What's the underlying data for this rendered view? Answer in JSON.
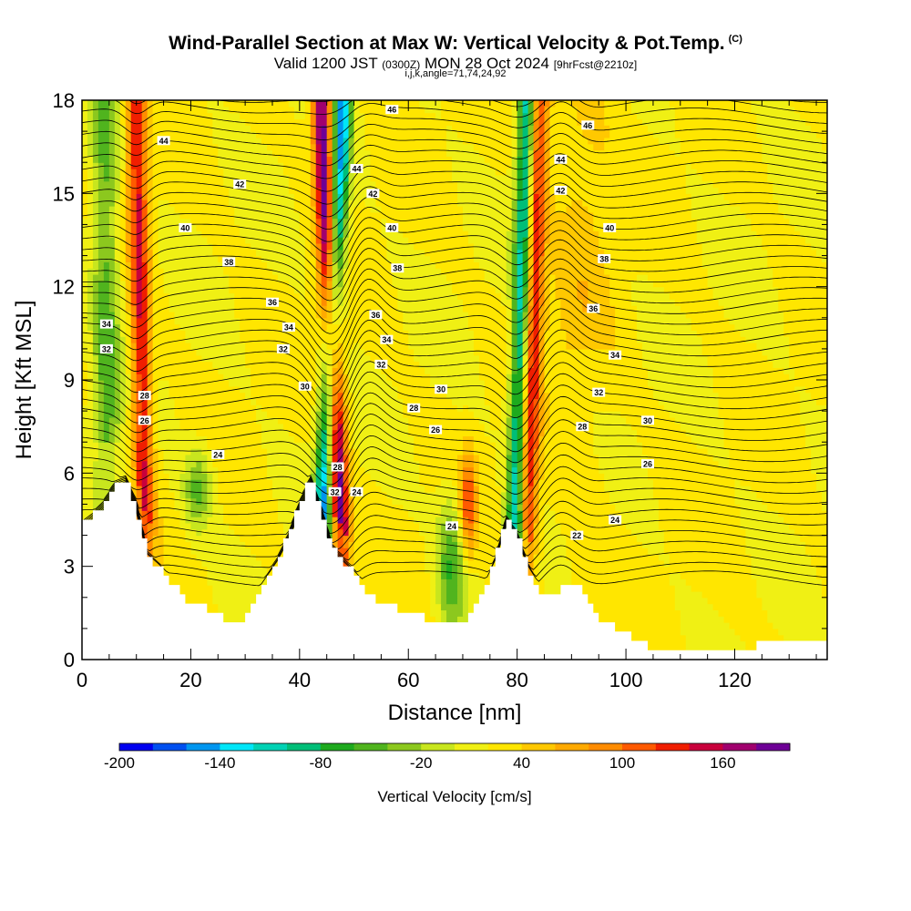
{
  "title": {
    "main": "Wind-Parallel Section at Max W: Vertical Velocity & Pot.Temp.",
    "copyright": "(C)",
    "valid_prefix": "Valid 1200 JST",
    "valid_utc": "(0300Z)",
    "valid_date": "MON 28 Oct 2024",
    "forecast": "[9hrFcst@2210z]",
    "indices": "i,j,k,angle=71,74,24,92"
  },
  "chart_data": {
    "type": "heatmap",
    "xlabel": "Distance [nm]",
    "ylabel": "Height [Kft MSL]",
    "xlim": [
      0,
      137
    ],
    "ylim": [
      0,
      18
    ],
    "x_ticks": [
      0,
      20,
      40,
      60,
      80,
      100,
      120
    ],
    "y_ticks": [
      0,
      3,
      6,
      9,
      12,
      15,
      18
    ],
    "colorbar": {
      "label": "Vertical Velocity [cm/s]",
      "min": -200,
      "max": 200,
      "step": 20,
      "tick_labels": [
        -200,
        -140,
        -80,
        -20,
        40,
        100,
        160
      ],
      "colors": [
        "#0000f0",
        "#0050f0",
        "#0096f0",
        "#00e6f8",
        "#00d2b4",
        "#00be78",
        "#1eaa1e",
        "#50b41e",
        "#8cc81e",
        "#c8e61e",
        "#f0f014",
        "#ffe600",
        "#ffc800",
        "#ffaa00",
        "#ff8c00",
        "#ff5a00",
        "#f01e00",
        "#c8003c",
        "#a0006e",
        "#6e0096"
      ]
    },
    "terrain_kft": [
      [
        0,
        4.3
      ],
      [
        2,
        4.6
      ],
      [
        4,
        5.0
      ],
      [
        6,
        5.6
      ],
      [
        8,
        5.8
      ],
      [
        10,
        5.0
      ],
      [
        12,
        3.4
      ],
      [
        14,
        3.0
      ],
      [
        16,
        2.6
      ],
      [
        18,
        2.2
      ],
      [
        20,
        1.8
      ],
      [
        24,
        1.6
      ],
      [
        26,
        1.3
      ],
      [
        28,
        1.0
      ],
      [
        30,
        1.4
      ],
      [
        32,
        2.0
      ],
      [
        34,
        2.6
      ],
      [
        36,
        3.2
      ],
      [
        38,
        4.0
      ],
      [
        40,
        5.0
      ],
      [
        42,
        5.8
      ],
      [
        44,
        4.8
      ],
      [
        46,
        3.6
      ],
      [
        48,
        3.2
      ],
      [
        50,
        2.8
      ],
      [
        52,
        2.3
      ],
      [
        56,
        1.7
      ],
      [
        60,
        1.6
      ],
      [
        64,
        1.3
      ],
      [
        68,
        1.3
      ],
      [
        70,
        1.0
      ],
      [
        72,
        1.5
      ],
      [
        74,
        2.3
      ],
      [
        76,
        3.2
      ],
      [
        78,
        4.5
      ],
      [
        80,
        4.0
      ],
      [
        82,
        3.0
      ],
      [
        84,
        2.3
      ],
      [
        86,
        2.0
      ],
      [
        88,
        2.3
      ],
      [
        90,
        2.5
      ],
      [
        92,
        2.2
      ],
      [
        94,
        1.5
      ],
      [
        96,
        1.2
      ],
      [
        100,
        0.8
      ],
      [
        104,
        0.4
      ],
      [
        124,
        0.4
      ],
      [
        126,
        0.6
      ],
      [
        128,
        0.7
      ],
      [
        130,
        0.5
      ],
      [
        137,
        0.5
      ]
    ],
    "theta_contours_K": [
      22,
      24,
      26,
      28,
      30,
      32,
      34,
      36,
      38,
      40,
      42,
      44,
      46
    ],
    "contour_labels": [
      {
        "v": "44",
        "x": 15,
        "y": 16.7
      },
      {
        "v": "42",
        "x": 29,
        "y": 15.3
      },
      {
        "v": "40",
        "x": 19,
        "y": 13.9
      },
      {
        "v": "38",
        "x": 27,
        "y": 12.8
      },
      {
        "v": "36",
        "x": 35,
        "y": 11.5
      },
      {
        "v": "34",
        "x": 4.5,
        "y": 10.8
      },
      {
        "v": "32",
        "x": 4.5,
        "y": 10.0
      },
      {
        "v": "34",
        "x": 38,
        "y": 10.7
      },
      {
        "v": "32",
        "x": 37,
        "y": 10.0
      },
      {
        "v": "30",
        "x": 41,
        "y": 8.8
      },
      {
        "v": "28",
        "x": 11.5,
        "y": 8.5
      },
      {
        "v": "26",
        "x": 11.5,
        "y": 7.7
      },
      {
        "v": "24",
        "x": 25,
        "y": 6.6
      },
      {
        "v": "46",
        "x": 57,
        "y": 17.7
      },
      {
        "v": "44",
        "x": 50.5,
        "y": 15.8
      },
      {
        "v": "42",
        "x": 53.5,
        "y": 15.0
      },
      {
        "v": "40",
        "x": 57,
        "y": 13.9
      },
      {
        "v": "38",
        "x": 58,
        "y": 12.6
      },
      {
        "v": "36",
        "x": 54,
        "y": 11.1
      },
      {
        "v": "34",
        "x": 56,
        "y": 10.3
      },
      {
        "v": "32",
        "x": 55,
        "y": 9.5
      },
      {
        "v": "30",
        "x": 66,
        "y": 8.7
      },
      {
        "v": "28",
        "x": 61,
        "y": 8.1
      },
      {
        "v": "26",
        "x": 65,
        "y": 7.4
      },
      {
        "v": "28",
        "x": 47,
        "y": 6.2
      },
      {
        "v": "32",
        "x": 46.5,
        "y": 5.4
      },
      {
        "v": "24",
        "x": 50.5,
        "y": 5.4
      },
      {
        "v": "24",
        "x": 68,
        "y": 4.3
      },
      {
        "v": "46",
        "x": 93,
        "y": 17.2
      },
      {
        "v": "44",
        "x": 88,
        "y": 16.1
      },
      {
        "v": "42",
        "x": 88,
        "y": 15.1
      },
      {
        "v": "40",
        "x": 97,
        "y": 13.9
      },
      {
        "v": "38",
        "x": 96,
        "y": 12.9
      },
      {
        "v": "36",
        "x": 94,
        "y": 11.3
      },
      {
        "v": "34",
        "x": 98,
        "y": 9.8
      },
      {
        "v": "32",
        "x": 95,
        "y": 8.6
      },
      {
        "v": "30",
        "x": 104,
        "y": 7.7
      },
      {
        "v": "28",
        "x": 92,
        "y": 7.5
      },
      {
        "v": "26",
        "x": 104,
        "y": 6.3
      },
      {
        "v": "24",
        "x": 98,
        "y": 4.5
      },
      {
        "v": "22",
        "x": 91,
        "y": 4.0
      }
    ],
    "updraft_bands": [
      {
        "x_top": 10,
        "x_bottom": 12,
        "peak_cm_s": 120
      },
      {
        "x_top": 44,
        "x_bottom": 48.5,
        "peak_cm_s": 180
      },
      {
        "x_top": 84,
        "x_bottom": 81,
        "peak_cm_s": 130
      },
      {
        "x_top": 71,
        "x_bottom": 71,
        "peak_cm_s": 100
      }
    ],
    "downdraft_bands": [
      {
        "x_top": 48,
        "x_bottom": 43,
        "min_cm_s": -170
      },
      {
        "x_top": 82,
        "x_bottom": 79,
        "min_cm_s": -150
      },
      {
        "x_top": 4,
        "x_bottom": 5,
        "min_cm_s": -70
      },
      {
        "x_top": 67,
        "x_bottom": 68,
        "min_cm_s": -80
      },
      {
        "x_top": 22,
        "x_bottom": 21,
        "min_cm_s": -70
      }
    ]
  }
}
